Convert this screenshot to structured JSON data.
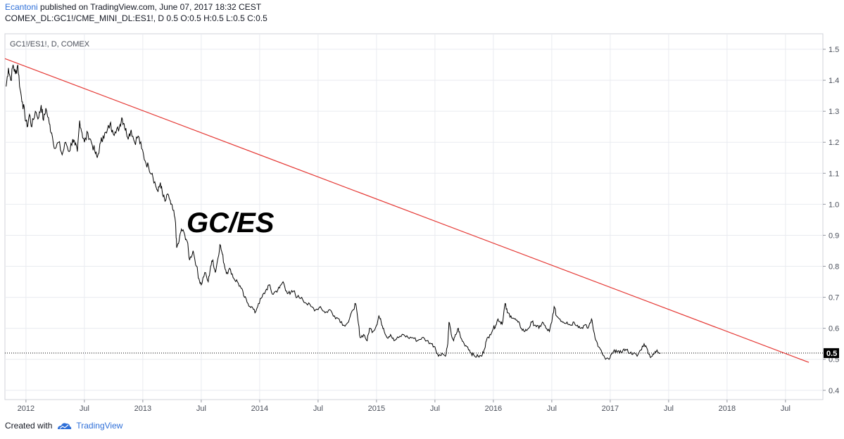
{
  "header": {
    "author": "Ecantoni",
    "published": "published on TradingView.com, June 07, 2017 18:32 CEST",
    "symbol_line": "COMEX_DL:GC1!/CME_MINI_DL:ES1!, D  0.5 O:0.5 H:0.5 L:0.5 C:0.5"
  },
  "footer": {
    "created_with": "Created with",
    "brand": "TradingView"
  },
  "colors": {
    "price_line": "#000000",
    "trend_line": "#e53935",
    "brand": "#2e6fd8",
    "grid": "#e9ebf0"
  },
  "chart_data": {
    "type": "line",
    "legend_label": "GC1!/ES1!, D, COMEX",
    "annotation": "GC/ES",
    "last_value_label": "0.5",
    "y_ticks": [
      "1.5",
      "1.4",
      "1.3",
      "1.2",
      "1.1",
      "1.0",
      "0.9",
      "0.8",
      "0.7",
      "0.6",
      "0.5",
      "0.4"
    ],
    "ylim": [
      0.37,
      1.55
    ],
    "x_ticks": [
      {
        "label": "2012",
        "t": 2012.0
      },
      {
        "label": "Jul",
        "t": 2012.5
      },
      {
        "label": "2013",
        "t": 2013.0
      },
      {
        "label": "Jul",
        "t": 2013.5
      },
      {
        "label": "2014",
        "t": 2014.0
      },
      {
        "label": "Jul",
        "t": 2014.5
      },
      {
        "label": "2015",
        "t": 2015.0
      },
      {
        "label": "Jul",
        "t": 2015.5
      },
      {
        "label": "2016",
        "t": 2016.0
      },
      {
        "label": "Jul",
        "t": 2016.5
      },
      {
        "label": "2017",
        "t": 2017.0
      },
      {
        "label": "Jul",
        "t": 2017.5
      },
      {
        "label": "2018",
        "t": 2018.0
      },
      {
        "label": "Jul",
        "t": 2018.5
      }
    ],
    "xlim": [
      2011.82,
      2018.82
    ],
    "series": [
      {
        "points": [
          [
            2011.83,
            1.38
          ],
          [
            2011.85,
            1.44
          ],
          [
            2011.87,
            1.4
          ],
          [
            2011.89,
            1.45
          ],
          [
            2011.91,
            1.42
          ],
          [
            2011.93,
            1.45
          ],
          [
            2011.95,
            1.37
          ],
          [
            2011.97,
            1.33
          ],
          [
            2011.99,
            1.29
          ],
          [
            2012.01,
            1.25
          ],
          [
            2012.03,
            1.29
          ],
          [
            2012.05,
            1.25
          ],
          [
            2012.08,
            1.3
          ],
          [
            2012.11,
            1.28
          ],
          [
            2012.13,
            1.32
          ],
          [
            2012.15,
            1.27
          ],
          [
            2012.17,
            1.31
          ],
          [
            2012.2,
            1.26
          ],
          [
            2012.22,
            1.23
          ],
          [
            2012.25,
            1.18
          ],
          [
            2012.28,
            1.2
          ],
          [
            2012.31,
            1.16
          ],
          [
            2012.34,
            1.2
          ],
          [
            2012.37,
            1.17
          ],
          [
            2012.4,
            1.21
          ],
          [
            2012.42,
            1.19
          ],
          [
            2012.44,
            1.17
          ],
          [
            2012.46,
            1.27
          ],
          [
            2012.48,
            1.23
          ],
          [
            2012.5,
            1.2
          ],
          [
            2012.53,
            1.23
          ],
          [
            2012.56,
            1.2
          ],
          [
            2012.59,
            1.17
          ],
          [
            2012.61,
            1.15
          ],
          [
            2012.64,
            1.2
          ],
          [
            2012.66,
            1.22
          ],
          [
            2012.69,
            1.23
          ],
          [
            2012.72,
            1.26
          ],
          [
            2012.74,
            1.24
          ],
          [
            2012.77,
            1.23
          ],
          [
            2012.8,
            1.25
          ],
          [
            2012.82,
            1.28
          ],
          [
            2012.84,
            1.26
          ],
          [
            2012.86,
            1.23
          ],
          [
            2012.88,
            1.22
          ],
          [
            2012.9,
            1.24
          ],
          [
            2012.93,
            1.2
          ],
          [
            2012.96,
            1.22
          ],
          [
            2012.99,
            1.18
          ],
          [
            2013.02,
            1.14
          ],
          [
            2013.05,
            1.12
          ],
          [
            2013.08,
            1.1
          ],
          [
            2013.11,
            1.06
          ],
          [
            2013.13,
            1.04
          ],
          [
            2013.15,
            1.07
          ],
          [
            2013.17,
            1.03
          ],
          [
            2013.19,
            1.01
          ],
          [
            2013.22,
            1.03
          ],
          [
            2013.24,
            1.0
          ],
          [
            2013.26,
            0.98
          ],
          [
            2013.28,
            0.94
          ],
          [
            2013.29,
            0.86
          ],
          [
            2013.31,
            0.88
          ],
          [
            2013.33,
            0.92
          ],
          [
            2013.36,
            0.9
          ],
          [
            2013.38,
            0.88
          ],
          [
            2013.4,
            0.82
          ],
          [
            2013.43,
            0.85
          ],
          [
            2013.46,
            0.8
          ],
          [
            2013.48,
            0.76
          ],
          [
            2013.5,
            0.74
          ],
          [
            2013.53,
            0.78
          ],
          [
            2013.56,
            0.75
          ],
          [
            2013.58,
            0.8
          ],
          [
            2013.6,
            0.82
          ],
          [
            2013.62,
            0.78
          ],
          [
            2013.64,
            0.82
          ],
          [
            2013.66,
            0.87
          ],
          [
            2013.68,
            0.84
          ],
          [
            2013.7,
            0.8
          ],
          [
            2013.72,
            0.78
          ],
          [
            2013.75,
            0.79
          ],
          [
            2013.78,
            0.76
          ],
          [
            2013.81,
            0.75
          ],
          [
            2013.84,
            0.73
          ],
          [
            2013.87,
            0.7
          ],
          [
            2013.9,
            0.68
          ],
          [
            2013.93,
            0.67
          ],
          [
            2013.96,
            0.65
          ],
          [
            2013.99,
            0.68
          ],
          [
            2014.02,
            0.7
          ],
          [
            2014.05,
            0.72
          ],
          [
            2014.08,
            0.74
          ],
          [
            2014.11,
            0.71
          ],
          [
            2014.14,
            0.72
          ],
          [
            2014.17,
            0.73
          ],
          [
            2014.2,
            0.75
          ],
          [
            2014.23,
            0.72
          ],
          [
            2014.26,
            0.71
          ],
          [
            2014.29,
            0.72
          ],
          [
            2014.32,
            0.7
          ],
          [
            2014.36,
            0.7
          ],
          [
            2014.4,
            0.68
          ],
          [
            2014.44,
            0.67
          ],
          [
            2014.48,
            0.66
          ],
          [
            2014.52,
            0.67
          ],
          [
            2014.56,
            0.65
          ],
          [
            2014.6,
            0.66
          ],
          [
            2014.64,
            0.64
          ],
          [
            2014.68,
            0.63
          ],
          [
            2014.72,
            0.61
          ],
          [
            2014.76,
            0.62
          ],
          [
            2014.8,
            0.66
          ],
          [
            2014.82,
            0.68
          ],
          [
            2014.84,
            0.63
          ],
          [
            2014.86,
            0.57
          ],
          [
            2014.89,
            0.58
          ],
          [
            2014.92,
            0.56
          ],
          [
            2014.94,
            0.6
          ],
          [
            2014.97,
            0.59
          ],
          [
            2015.0,
            0.61
          ],
          [
            2015.02,
            0.64
          ],
          [
            2015.04,
            0.62
          ],
          [
            2015.06,
            0.6
          ],
          [
            2015.09,
            0.57
          ],
          [
            2015.12,
            0.58
          ],
          [
            2015.15,
            0.56
          ],
          [
            2015.19,
            0.57
          ],
          [
            2015.23,
            0.58
          ],
          [
            2015.27,
            0.57
          ],
          [
            2015.31,
            0.57
          ],
          [
            2015.35,
            0.56
          ],
          [
            2015.39,
            0.57
          ],
          [
            2015.43,
            0.56
          ],
          [
            2015.47,
            0.55
          ],
          [
            2015.5,
            0.54
          ],
          [
            2015.53,
            0.51
          ],
          [
            2015.56,
            0.52
          ],
          [
            2015.59,
            0.51
          ],
          [
            2015.61,
            0.55
          ],
          [
            2015.62,
            0.62
          ],
          [
            2015.64,
            0.58
          ],
          [
            2015.66,
            0.56
          ],
          [
            2015.68,
            0.58
          ],
          [
            2015.7,
            0.6
          ],
          [
            2015.72,
            0.57
          ],
          [
            2015.75,
            0.55
          ],
          [
            2015.78,
            0.54
          ],
          [
            2015.81,
            0.52
          ],
          [
            2015.84,
            0.51
          ],
          [
            2015.87,
            0.51
          ],
          [
            2015.9,
            0.51
          ],
          [
            2015.92,
            0.53
          ],
          [
            2015.94,
            0.56
          ],
          [
            2015.97,
            0.58
          ],
          [
            2016.0,
            0.6
          ],
          [
            2016.02,
            0.61
          ],
          [
            2016.04,
            0.63
          ],
          [
            2016.06,
            0.62
          ],
          [
            2016.08,
            0.62
          ],
          [
            2016.1,
            0.68
          ],
          [
            2016.12,
            0.65
          ],
          [
            2016.15,
            0.64
          ],
          [
            2016.18,
            0.63
          ],
          [
            2016.21,
            0.62
          ],
          [
            2016.24,
            0.6
          ],
          [
            2016.27,
            0.59
          ],
          [
            2016.3,
            0.6
          ],
          [
            2016.33,
            0.62
          ],
          [
            2016.36,
            0.61
          ],
          [
            2016.39,
            0.6
          ],
          [
            2016.42,
            0.62
          ],
          [
            2016.45,
            0.6
          ],
          [
            2016.48,
            0.59
          ],
          [
            2016.5,
            0.62
          ],
          [
            2016.52,
            0.67
          ],
          [
            2016.54,
            0.64
          ],
          [
            2016.57,
            0.63
          ],
          [
            2016.6,
            0.62
          ],
          [
            2016.63,
            0.62
          ],
          [
            2016.66,
            0.61
          ],
          [
            2016.69,
            0.62
          ],
          [
            2016.72,
            0.61
          ],
          [
            2016.75,
            0.6
          ],
          [
            2016.78,
            0.61
          ],
          [
            2016.81,
            0.6
          ],
          [
            2016.84,
            0.63
          ],
          [
            2016.86,
            0.59
          ],
          [
            2016.88,
            0.56
          ],
          [
            2016.9,
            0.54
          ],
          [
            2016.93,
            0.52
          ],
          [
            2016.96,
            0.5
          ],
          [
            2016.99,
            0.5
          ],
          [
            2017.02,
            0.52
          ],
          [
            2017.05,
            0.53
          ],
          [
            2017.08,
            0.52
          ],
          [
            2017.11,
            0.53
          ],
          [
            2017.14,
            0.53
          ],
          [
            2017.17,
            0.52
          ],
          [
            2017.2,
            0.52
          ],
          [
            2017.23,
            0.51
          ],
          [
            2017.26,
            0.53
          ],
          [
            2017.29,
            0.55
          ],
          [
            2017.32,
            0.53
          ],
          [
            2017.34,
            0.51
          ],
          [
            2017.36,
            0.51
          ],
          [
            2017.38,
            0.52
          ],
          [
            2017.4,
            0.53
          ],
          [
            2017.43,
            0.52
          ]
        ]
      },
      {
        "points": [
          [
            2011.82,
            1.47
          ],
          [
            2018.7,
            0.49
          ]
        ]
      }
    ],
    "last_value": 0.52
  }
}
